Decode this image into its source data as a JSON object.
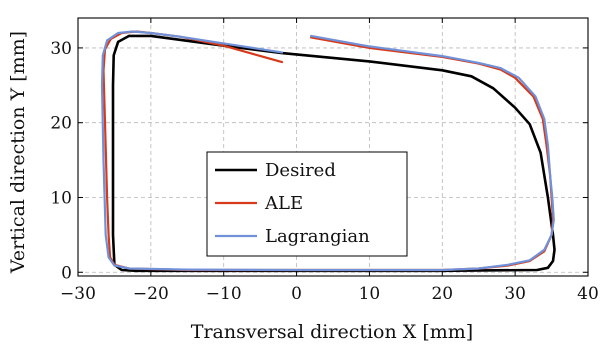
{
  "chart_data": {
    "type": "line",
    "xlabel": "Transversal direction X [mm]",
    "ylabel": "Vertical direction Y [mm]",
    "xlim": [
      -30,
      40
    ],
    "ylim": [
      -0.5,
      34
    ],
    "xticks": [
      -30,
      -20,
      -10,
      0,
      10,
      20,
      30,
      40
    ],
    "yticks": [
      0,
      10,
      20,
      30
    ],
    "xtick_labels": [
      "−30",
      "−20",
      "−10",
      "0",
      "10",
      "20",
      "30",
      "40"
    ],
    "ytick_labels": [
      "0",
      "10",
      "20",
      "30"
    ],
    "grid": true,
    "legend_position": "center",
    "series": [
      {
        "name": "Desired",
        "color": "#000000",
        "segments": [
          [
            [
              -2,
              29.3
            ],
            [
              10,
              28.2
            ],
            [
              20,
              27
            ],
            [
              24,
              26.2
            ],
            [
              27,
              24.6
            ],
            [
              30,
              22
            ],
            [
              32,
              19.8
            ],
            [
              33.5,
              16
            ],
            [
              34.5,
              10
            ],
            [
              35.2,
              5
            ],
            [
              35.4,
              3
            ],
            [
              35.2,
              1.5
            ],
            [
              34.5,
              0.6
            ],
            [
              33,
              0.3
            ],
            [
              20,
              0.2
            ],
            [
              -10,
              0.2
            ],
            [
              -22,
              0.2
            ],
            [
              -24,
              0.3
            ],
            [
              -25,
              1
            ],
            [
              -25.2,
              5
            ],
            [
              -25.2,
              15
            ],
            [
              -25.2,
              25
            ],
            [
              -25.1,
              29
            ],
            [
              -24.5,
              30.8
            ],
            [
              -23,
              31.6
            ],
            [
              -20,
              31.6
            ],
            [
              -10,
              30.3
            ],
            [
              -2,
              29.3
            ]
          ]
        ]
      },
      {
        "name": "ALE",
        "color": "#d63a1a",
        "segments": [
          [
            [
              -2,
              28.1
            ],
            [
              -10,
              30.3
            ],
            [
              -16,
              31.5
            ],
            [
              -20,
              32
            ],
            [
              -22,
              32.2
            ],
            [
              -24,
              32
            ],
            [
              -25.5,
              31.2
            ],
            [
              -26.3,
              29.8
            ],
            [
              -26.5,
              27
            ],
            [
              -26.3,
              20
            ],
            [
              -26,
              10
            ],
            [
              -25.8,
              5
            ],
            [
              -25.6,
              2
            ],
            [
              -25,
              1
            ],
            [
              -23,
              0.5
            ],
            [
              -15,
              0.3
            ],
            [
              0,
              0.3
            ],
            [
              20,
              0.3
            ],
            [
              25,
              0.5
            ],
            [
              29,
              0.9
            ],
            [
              32,
              1.5
            ],
            [
              34,
              2.8
            ],
            [
              35,
              5
            ],
            [
              35.2,
              7
            ],
            [
              35,
              10
            ],
            [
              34.8,
              13
            ],
            [
              34.3,
              17
            ],
            [
              33.8,
              20.5
            ],
            [
              32.5,
              23.5
            ],
            [
              30,
              26
            ],
            [
              28,
              27.1
            ],
            [
              25,
              27.9
            ],
            [
              20,
              28.8
            ],
            [
              10,
              30
            ],
            [
              2,
              31.4
            ]
          ]
        ]
      },
      {
        "name": "Lagrangian",
        "color": "#7090d8",
        "segments": [
          [
            [
              -2,
              29.4
            ],
            [
              -10,
              30.6
            ],
            [
              -16,
              31.5
            ],
            [
              -20,
              32
            ],
            [
              -22.5,
              32.2
            ],
            [
              -24.5,
              32
            ],
            [
              -26,
              31
            ],
            [
              -26.6,
              29
            ],
            [
              -26.7,
              25
            ],
            [
              -26.5,
              15
            ],
            [
              -26.2,
              5
            ],
            [
              -25.8,
              2
            ],
            [
              -25,
              0.9
            ],
            [
              -23,
              0.5
            ],
            [
              -15,
              0.35
            ],
            [
              0,
              0.3
            ],
            [
              20,
              0.3
            ],
            [
              25,
              0.5
            ],
            [
              29,
              1
            ],
            [
              32,
              1.6
            ],
            [
              34,
              3
            ],
            [
              35,
              5
            ],
            [
              35.3,
              7
            ],
            [
              35.1,
              10
            ],
            [
              34.8,
              13
            ],
            [
              34.5,
              17
            ],
            [
              34,
              20.5
            ],
            [
              32.8,
              23.5
            ],
            [
              30.5,
              26
            ],
            [
              28,
              27.3
            ],
            [
              25,
              28
            ],
            [
              20,
              28.9
            ],
            [
              10,
              30.2
            ],
            [
              2,
              31.6
            ]
          ]
        ]
      }
    ]
  }
}
